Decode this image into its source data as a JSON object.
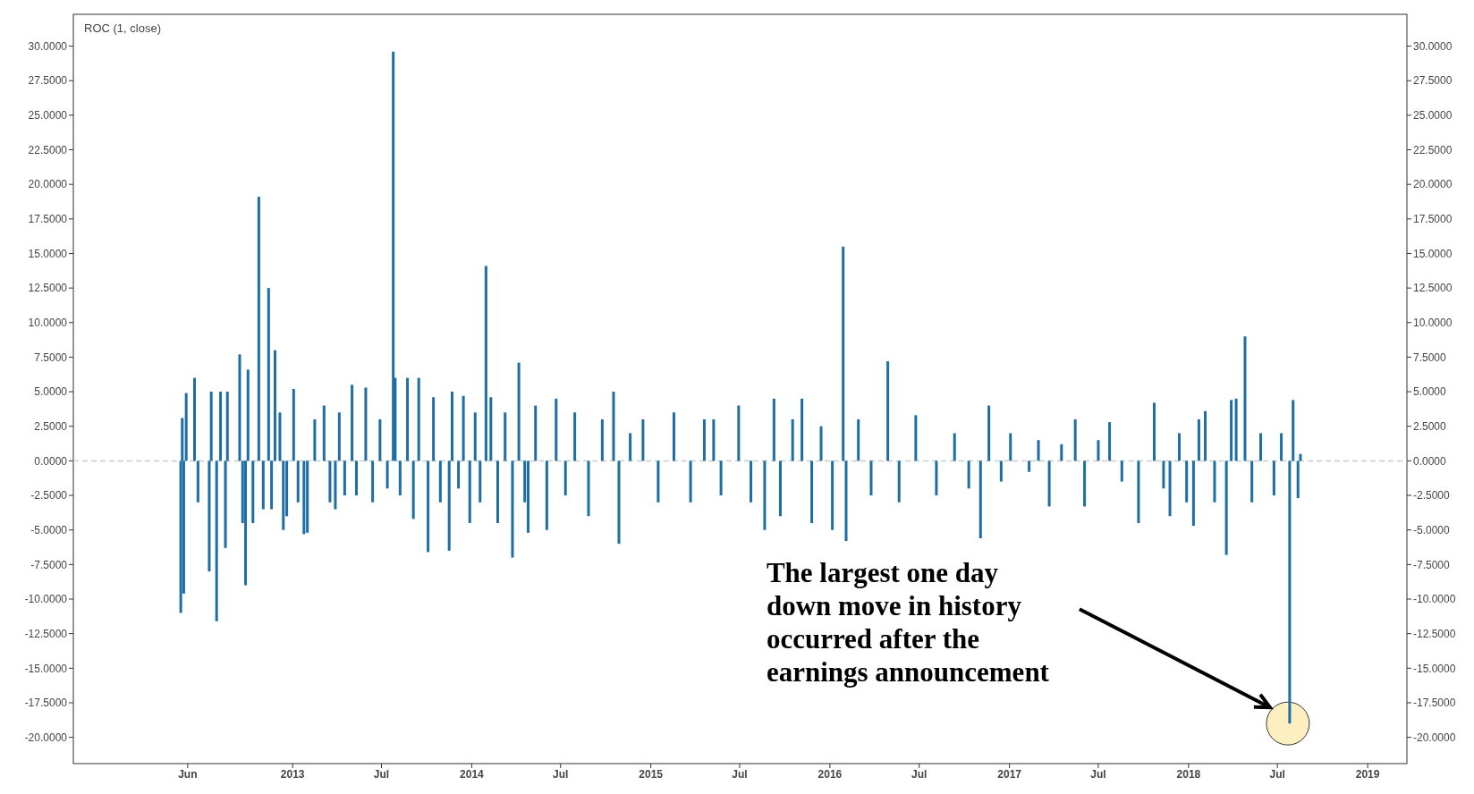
{
  "chart_data": {
    "type": "bar",
    "title": "ROC (1, close)",
    "x": [
      "2012-05-18",
      "2012-05-21",
      "2012-05-24",
      "2012-05-29",
      "2012-06-15",
      "2012-06-22",
      "2012-07-15",
      "2012-07-19",
      "2012-07-30",
      "2012-08-07",
      "2012-08-17",
      "2012-08-21",
      "2012-09-15",
      "2012-09-21",
      "2012-09-27",
      "2012-10-02",
      "2012-10-12",
      "2012-10-24",
      "2012-11-02",
      "2012-11-13",
      "2012-11-19",
      "2012-11-26",
      "2012-12-06",
      "2012-12-13",
      "2012-12-20",
      "2013-01-03",
      "2013-01-12",
      "2013-01-24",
      "2013-01-31",
      "2013-02-15",
      "2013-03-06",
      "2013-03-18",
      "2013-03-29",
      "2013-04-06",
      "2013-04-17",
      "2013-05-02",
      "2013-05-11",
      "2013-05-30",
      "2013-06-13",
      "2013-06-28",
      "2013-07-13",
      "2013-07-25",
      "2013-07-29",
      "2013-08-08",
      "2013-08-23",
      "2013-09-04",
      "2013-09-15",
      "2013-10-04",
      "2013-10-15",
      "2013-10-29",
      "2013-11-16",
      "2013-11-22",
      "2013-12-05",
      "2013-12-15",
      "2013-12-28",
      "2014-01-08",
      "2014-01-18",
      "2014-01-30",
      "2014-02-09",
      "2014-02-23",
      "2014-03-10",
      "2014-03-25",
      "2014-04-07",
      "2014-04-19",
      "2014-04-26",
      "2014-05-11",
      "2014-06-03",
      "2014-06-22",
      "2014-07-11",
      "2014-07-30",
      "2014-08-27",
      "2014-09-24",
      "2014-10-17",
      "2014-10-28",
      "2014-11-20",
      "2014-12-16",
      "2015-01-16",
      "2015-02-17",
      "2015-03-23",
      "2015-04-20",
      "2015-05-09",
      "2015-05-24",
      "2015-06-29",
      "2015-07-24",
      "2015-08-21",
      "2015-09-09",
      "2015-09-22",
      "2015-10-17",
      "2015-11-05",
      "2015-11-25",
      "2015-12-14",
      "2016-01-06",
      "2016-01-28",
      "2016-02-03",
      "2016-02-28",
      "2016-03-25",
      "2016-04-28",
      "2016-05-21",
      "2016-06-24",
      "2016-08-05",
      "2016-09-11",
      "2016-10-10",
      "2016-11-03",
      "2016-11-20",
      "2016-12-15",
      "2017-01-03",
      "2017-02-10",
      "2017-03-01",
      "2017-03-23",
      "2017-04-17",
      "2017-05-15",
      "2017-06-03",
      "2017-07-01",
      "2017-07-24",
      "2017-08-18",
      "2017-09-21",
      "2017-10-23",
      "2017-11-11",
      "2017-11-24",
      "2017-12-13",
      "2017-12-28",
      "2018-01-11",
      "2018-01-22",
      "2018-02-04",
      "2018-02-23",
      "2018-03-19",
      "2018-03-29",
      "2018-04-08",
      "2018-04-26",
      "2018-05-10",
      "2018-05-28",
      "2018-06-24",
      "2018-07-09",
      "2018-07-26",
      "2018-08-02",
      "2018-08-12",
      "2018-08-17"
    ],
    "series": [
      {
        "color": "#1c6ea4",
        "values": [
          -11.0,
          3.1,
          -9.6,
          4.9,
          6.0,
          -3.0,
          -8.0,
          5.0,
          -11.6,
          5.0,
          -6.3,
          5.0,
          7.7,
          -4.5,
          -9.0,
          6.6,
          -4.5,
          19.1,
          -3.5,
          12.5,
          -3.5,
          8.0,
          3.5,
          -5.0,
          -4.0,
          5.2,
          -3.0,
          -5.3,
          -5.2,
          3.0,
          4.0,
          -3.0,
          -3.5,
          3.5,
          -2.5,
          5.5,
          -2.5,
          5.3,
          -3.0,
          3.0,
          -2.0,
          29.6,
          6.0,
          -2.5,
          6.0,
          -4.2,
          6.0,
          -6.6,
          4.6,
          -3.0,
          -6.5,
          5.0,
          -2.0,
          4.7,
          -4.5,
          3.5,
          -3.0,
          14.1,
          4.6,
          -4.5,
          3.5,
          -7.0,
          7.1,
          -3.0,
          -5.2,
          4.0,
          -5.0,
          4.5,
          -2.5,
          3.5,
          -4.0,
          3.0,
          5.0,
          -6.0,
          2.0,
          3.0,
          -3.0,
          3.5,
          -3.0,
          3.0,
          3.0,
          -2.5,
          4.0,
          -3.0,
          -5.0,
          4.5,
          -4.0,
          3.0,
          4.5,
          -4.5,
          2.5,
          -5.0,
          15.5,
          -5.8,
          3.0,
          -2.5,
          7.2,
          -3.0,
          3.3,
          -2.5,
          2.0,
          -2.0,
          -5.6,
          4.0,
          -1.5,
          2.0,
          -0.8,
          1.5,
          -3.3,
          1.2,
          3.0,
          -3.3,
          1.5,
          2.8,
          -1.5,
          -4.5,
          4.2,
          -2.0,
          -4.0,
          2.0,
          -3.0,
          -4.7,
          3.0,
          3.6,
          -3.0,
          -6.8,
          4.4,
          4.5,
          9.0,
          -3.0,
          2.0,
          -2.5,
          2.0,
          -19.0,
          4.4,
          -2.7,
          0.5
        ]
      }
    ],
    "xlim": [
      "2011-10-12",
      "2019-03-22"
    ],
    "xticks": [
      {
        "value": "2012-06-01",
        "label": "Jun"
      },
      {
        "value": "2013-01-01",
        "label": "2013"
      },
      {
        "value": "2013-07-01",
        "label": "Jul"
      },
      {
        "value": "2014-01-01",
        "label": "2014"
      },
      {
        "value": "2014-07-01",
        "label": "Jul"
      },
      {
        "value": "2015-01-01",
        "label": "2015"
      },
      {
        "value": "2015-07-01",
        "label": "Jul"
      },
      {
        "value": "2016-01-01",
        "label": "2016"
      },
      {
        "value": "2016-07-01",
        "label": "Jul"
      },
      {
        "value": "2017-01-01",
        "label": "2017"
      },
      {
        "value": "2017-07-01",
        "label": "Jul"
      },
      {
        "value": "2018-01-01",
        "label": "2018"
      },
      {
        "value": "2018-07-01",
        "label": "Jul"
      },
      {
        "value": "2019-01-01",
        "label": "2019"
      }
    ],
    "ylim": [
      -21.9,
      32.3
    ],
    "yticks": [
      {
        "value": -20,
        "label": "-20.0000"
      },
      {
        "value": -17.5,
        "label": "-17.5000"
      },
      {
        "value": -15,
        "label": "-15.0000"
      },
      {
        "value": -12.5,
        "label": "-12.5000"
      },
      {
        "value": -10,
        "label": "-10.0000"
      },
      {
        "value": -7.5,
        "label": "-7.5000"
      },
      {
        "value": -5,
        "label": "-5.0000"
      },
      {
        "value": -2.5,
        "label": "-2.5000"
      },
      {
        "value": 0,
        "label": "0.0000"
      },
      {
        "value": 2.5,
        "label": "2.5000"
      },
      {
        "value": 5,
        "label": "5.0000"
      },
      {
        "value": 7.5,
        "label": "7.5000"
      },
      {
        "value": 10,
        "label": "10.0000"
      },
      {
        "value": 12.5,
        "label": "12.5000"
      },
      {
        "value": 15,
        "label": "15.0000"
      },
      {
        "value": 17.5,
        "label": "17.5000"
      },
      {
        "value": 20,
        "label": "20.0000"
      },
      {
        "value": 22.5,
        "label": "22.5000"
      },
      {
        "value": 25,
        "label": "25.0000"
      },
      {
        "value": 27.5,
        "label": "27.5000"
      },
      {
        "value": 30,
        "label": "30.0000"
      }
    ],
    "y2lim": [
      -21.9,
      32.3
    ],
    "y2ticks": [
      {
        "value": -20,
        "label": "-20.0000"
      },
      {
        "value": -17.5,
        "label": "-17.5000"
      },
      {
        "value": -15,
        "label": "-15.0000"
      },
      {
        "value": -12.5,
        "label": "-12.5000"
      },
      {
        "value": -10,
        "label": "-10.0000"
      },
      {
        "value": -7.5,
        "label": "-7.5000"
      },
      {
        "value": -5,
        "label": "-5.0000"
      },
      {
        "value": -2.5,
        "label": "-2.5000"
      },
      {
        "value": 0,
        "label": "0.0000"
      },
      {
        "value": 2.5,
        "label": "2.5000"
      },
      {
        "value": 5,
        "label": "5.0000"
      },
      {
        "value": 7.5,
        "label": "7.5000"
      },
      {
        "value": 10,
        "label": "10.0000"
      },
      {
        "value": 12.5,
        "label": "12.5000"
      },
      {
        "value": 15,
        "label": "15.0000"
      },
      {
        "value": 17.5,
        "label": "17.5000"
      },
      {
        "value": 20,
        "label": "20.0000"
      },
      {
        "value": 22.5,
        "label": "22.5000"
      },
      {
        "value": 25,
        "label": "25.0000"
      },
      {
        "value": 27.5,
        "label": "27.5000"
      },
      {
        "value": 30,
        "label": "30.0000"
      }
    ],
    "ref_lines": [
      {
        "axis": "y",
        "value": 0,
        "color": "#cccccc",
        "line_style": "dashed"
      }
    ],
    "grid": false,
    "annotations": [
      "The largest one day down move in history occurred after the earnings announcement"
    ]
  }
}
